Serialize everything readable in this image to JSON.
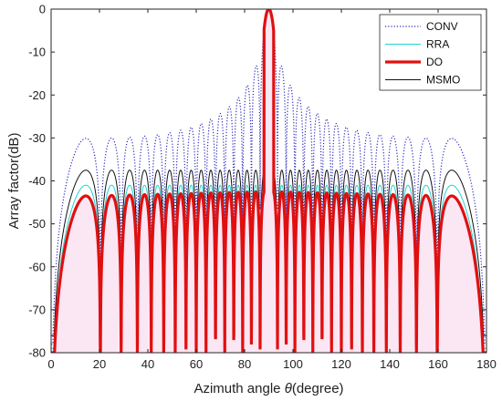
{
  "chart_data": {
    "type": "line",
    "xlabel_prefix": "Azimuth angle ",
    "xlabel_symbol": "θ",
    "xlabel_suffix": "(degree)",
    "ylabel": "Array factor(dB)",
    "xlim": [
      0,
      180
    ],
    "ylim": [
      -80,
      0
    ],
    "xticks": [
      0,
      20,
      40,
      60,
      80,
      100,
      120,
      140,
      160,
      180
    ],
    "yticks": [
      0,
      -10,
      -20,
      -30,
      -40,
      -50,
      -60,
      -70,
      -80
    ],
    "grid": false,
    "legend_position": "top-right",
    "series": [
      {
        "name": "CONV",
        "color": "#2b2bc0",
        "style": "dotted",
        "n": 32,
        "sidelobe_edge": -27.5,
        "sidelobe_center": -13.3,
        "null_depth": -78
      },
      {
        "name": "RRA",
        "color": "#22d3d3",
        "style": "solid",
        "n": 32,
        "sidelobe_edge": -41,
        "sidelobe_center": -41,
        "null_depth": -79
      },
      {
        "name": "DO",
        "color": "#e01010",
        "style": "bold",
        "n": 32,
        "sidelobe_edge": -43.5,
        "sidelobe_center": -42.5,
        "null_depth": -80
      },
      {
        "name": "MSMO",
        "color": "#111111",
        "style": "solid",
        "n": 32,
        "sidelobe_edge": -37.5,
        "sidelobe_center": -37.5,
        "null_depth": -76
      }
    ]
  }
}
